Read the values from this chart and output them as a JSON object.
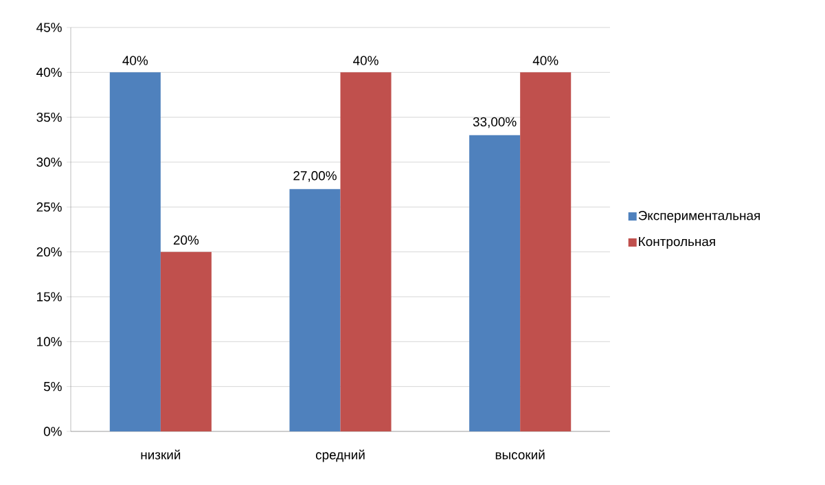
{
  "chart_data": {
    "type": "bar",
    "categories": [
      "низкий",
      "средний",
      "высокий"
    ],
    "series": [
      {
        "name": "Экспериментальная",
        "color": "#4f81bd",
        "values": [
          40,
          27,
          33
        ],
        "value_labels": [
          "40%",
          "27,00%",
          "33,00%"
        ]
      },
      {
        "name": "Контрольная",
        "color": "#c0504d",
        "values": [
          20,
          40,
          40
        ],
        "value_labels": [
          "20%",
          "40%",
          "40%"
        ]
      }
    ],
    "ylim": [
      0,
      45
    ],
    "yticks": [
      {
        "value": 0,
        "label": "0%"
      },
      {
        "value": 5,
        "label": "5%"
      },
      {
        "value": 10,
        "label": "10%"
      },
      {
        "value": 15,
        "label": "15%"
      },
      {
        "value": 20,
        "label": "20%"
      },
      {
        "value": 25,
        "label": "25%"
      },
      {
        "value": 30,
        "label": "30%"
      },
      {
        "value": 35,
        "label": "35%"
      },
      {
        "value": 40,
        "label": "40%"
      },
      {
        "value": 45,
        "label": "45%"
      }
    ],
    "grid": "y",
    "legend": "right"
  }
}
